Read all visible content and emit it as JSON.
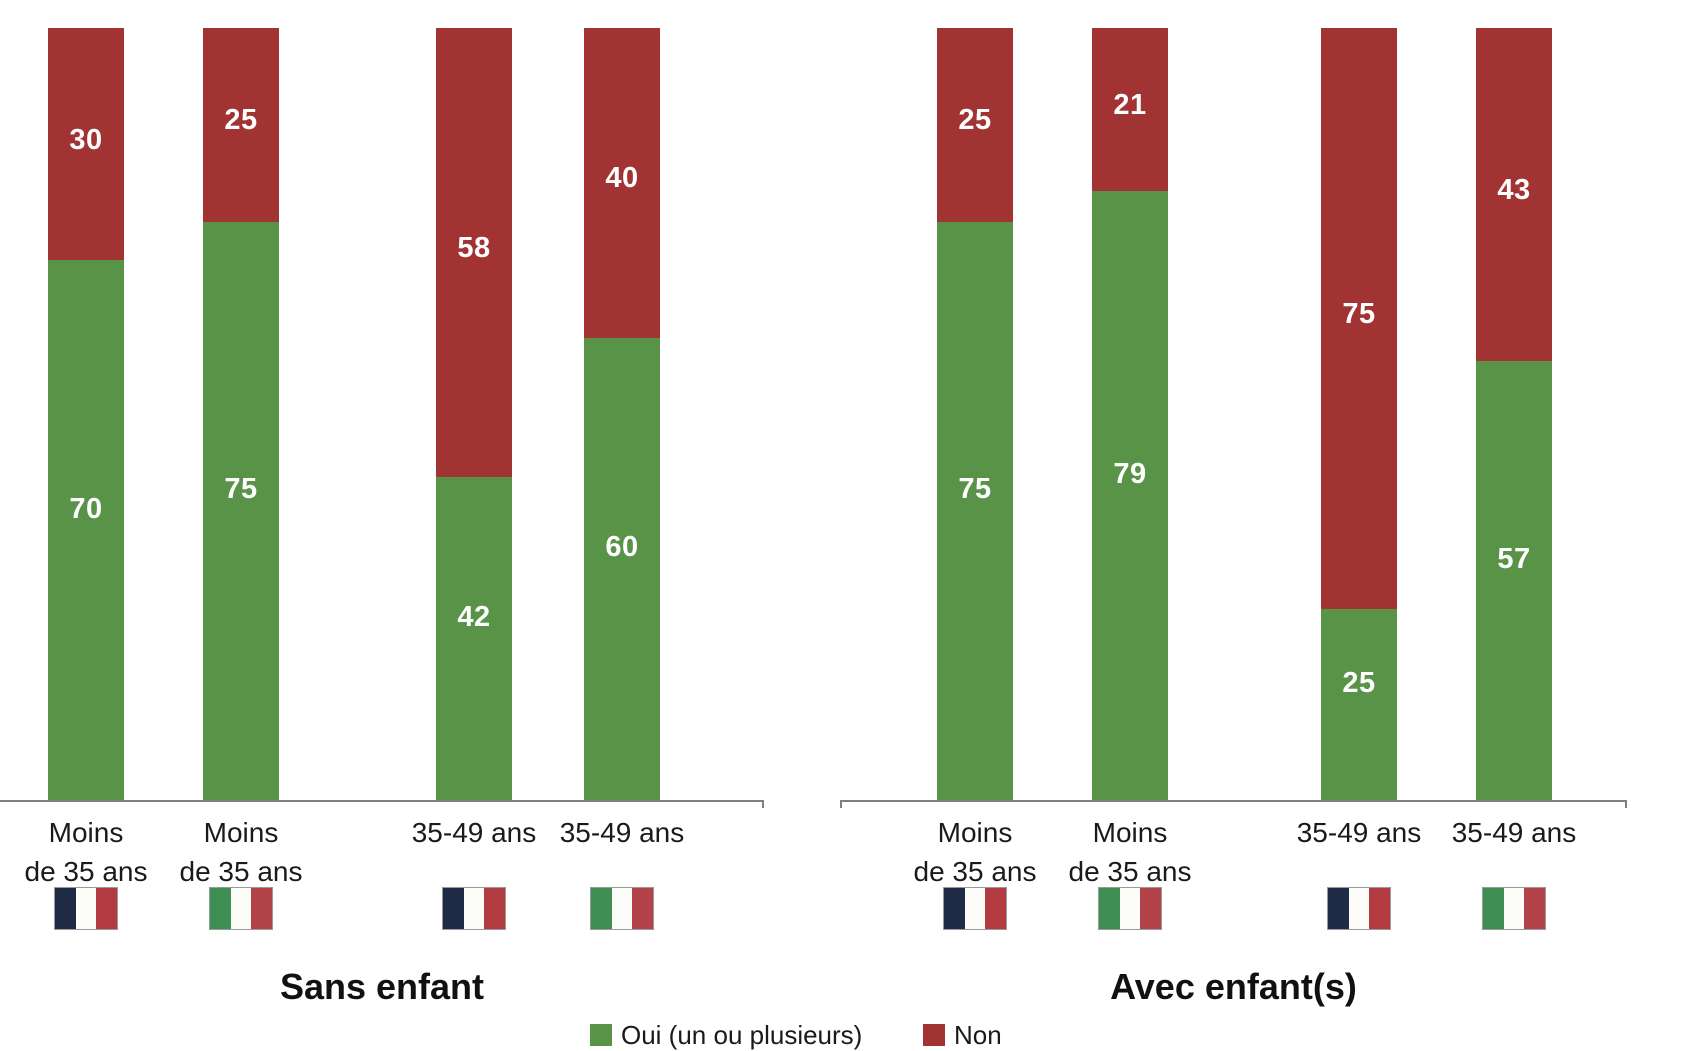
{
  "chart_data": {
    "type": "bar",
    "stacked": true,
    "unit": "percent",
    "ylim": [
      0,
      100
    ],
    "grid": false,
    "legend_position": "bottom-center",
    "colors": {
      "oui": "#589348",
      "non": "#A23333",
      "axis": "#7F7F7F",
      "text": "#1A1A1A"
    },
    "flag_colors": {
      "france": [
        "#1F2A44",
        "#FCFCF9",
        "#B23B42"
      ],
      "italy": [
        "#3F8F55",
        "#FCFCF9",
        "#B24449"
      ]
    },
    "legend": {
      "oui": "Oui (un ou plusieurs)",
      "non": "Non"
    },
    "panels": [
      {
        "title": "Sans enfant",
        "bars": [
          {
            "age_label": [
              "Moins",
              "de 35 ans"
            ],
            "flag": "france",
            "oui": 70,
            "non": 30
          },
          {
            "age_label": [
              "Moins",
              "de 35 ans"
            ],
            "flag": "italy",
            "oui": 75,
            "non": 25
          },
          {
            "age_label": [
              "35-49 ans"
            ],
            "flag": "france",
            "oui": 42,
            "non": 58
          },
          {
            "age_label": [
              "35-49 ans"
            ],
            "flag": "italy",
            "oui": 60,
            "non": 40
          }
        ]
      },
      {
        "title": "Avec enfant(s)",
        "bars": [
          {
            "age_label": [
              "Moins",
              "de 35 ans"
            ],
            "flag": "france",
            "oui": 75,
            "non": 25
          },
          {
            "age_label": [
              "Moins",
              "de 35 ans"
            ],
            "flag": "italy",
            "oui": 79,
            "non": 21
          },
          {
            "age_label": [
              "35-49 ans"
            ],
            "flag": "france",
            "oui": 25,
            "non": 75
          },
          {
            "age_label": [
              "35-49 ans"
            ],
            "flag": "italy",
            "oui": 57,
            "non": 43
          }
        ]
      }
    ]
  }
}
